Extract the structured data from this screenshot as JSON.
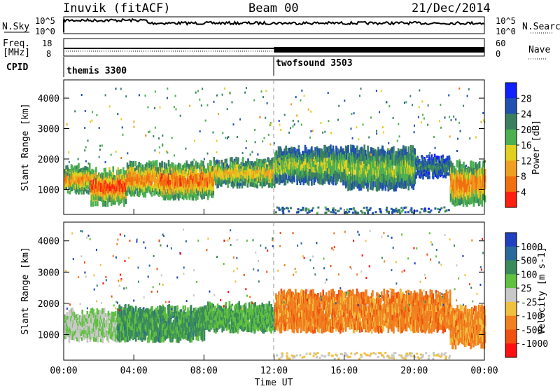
{
  "header": {
    "station": "Inuvik (fitACF)",
    "beam": "Beam 00",
    "date": "21/Dec/2014"
  },
  "top_panels": {
    "nsky_label": "N.Sky",
    "nsky_ticks": [
      "10^5",
      "10^0"
    ],
    "nsearch_label": "N.Search",
    "nsearch_ticks": [
      "10^5",
      "10^0"
    ],
    "freq_label": "Freq.",
    "freq_unit": "[MHz]",
    "freq_ticks": [
      "18",
      "8"
    ],
    "nave_label": "Nave",
    "nave_ticks": [
      "60",
      "0"
    ],
    "cpid_label": "CPID",
    "cpid_segments": [
      {
        "name": "themis 3300",
        "start_hour": 0
      },
      {
        "name": "twofsound 3503",
        "start_hour": 12
      }
    ]
  },
  "chart_data": [
    {
      "type": "heatmap",
      "panel": "power",
      "xlabel": "",
      "ylabel": "Slant Range [km]",
      "x_range_hours": [
        0,
        24
      ],
      "ylim": [
        180,
        4600
      ],
      "y_ticks": [
        "1000",
        "2000",
        "3000",
        "4000"
      ],
      "colorbar_label": "Power [dB]",
      "colorbar_ticks": [
        "4",
        "8",
        "12",
        "16",
        "20",
        "24",
        "28"
      ],
      "colorbar_colors": [
        "#1020ff",
        "#2050b0",
        "#3a8060",
        "#4cb050",
        "#e0d020",
        "#f0a020",
        "#f07010",
        "#ff2010"
      ],
      "bands": [
        {
          "t0": 0.0,
          "t1": 1.5,
          "r0": 900,
          "r1": 1700,
          "level": 0.8
        },
        {
          "t0": 1.5,
          "t1": 3.5,
          "r0": 500,
          "r1": 1600,
          "level": 0.95
        },
        {
          "t0": 3.5,
          "t1": 5.5,
          "r0": 800,
          "r1": 1800,
          "level": 0.85
        },
        {
          "t0": 5.5,
          "t1": 8.5,
          "r0": 700,
          "r1": 1800,
          "level": 0.9
        },
        {
          "t0": 8.5,
          "t1": 12.0,
          "r0": 1100,
          "r1": 1900,
          "level": 0.7
        },
        {
          "t0": 12.0,
          "t1": 16.0,
          "r0": 1200,
          "r1": 2300,
          "level": 0.55
        },
        {
          "t0": 16.0,
          "t1": 20.0,
          "r0": 1000,
          "r1": 2300,
          "level": 0.55
        },
        {
          "t0": 20.0,
          "t1": 22.0,
          "r0": 1400,
          "r1": 2000,
          "level": 0.35
        },
        {
          "t0": 22.0,
          "t1": 24.0,
          "r0": 500,
          "r1": 1800,
          "level": 0.85
        }
      ]
    },
    {
      "type": "heatmap",
      "panel": "velocity",
      "xlabel": "Time UT",
      "ylabel": "Slant Range [km]",
      "x_range_hours": [
        0,
        24
      ],
      "x_ticks": [
        "00:00",
        "04:00",
        "08:00",
        "12:00",
        "16:00",
        "20:00",
        "00:00"
      ],
      "ylim": [
        180,
        4600
      ],
      "y_ticks": [
        "1000",
        "2000",
        "3000",
        "4000"
      ],
      "colorbar_label": "Velocity [m s-1]",
      "colorbar_ticks": [
        "1000",
        "500",
        "100",
        "25",
        "-25",
        "-100",
        "-500",
        "-1000"
      ],
      "colorbar_colors": [
        "#2040c0",
        "#2a6a9a",
        "#3a8a5a",
        "#60c040",
        "#c8c8c8",
        "#f0c040",
        "#f08020",
        "#f05010",
        "#ff1010"
      ],
      "bands": [
        {
          "t0": 0.0,
          "t1": 3.0,
          "r0": 800,
          "r1": 1700,
          "vel": 0.45
        },
        {
          "t0": 3.0,
          "t1": 8.0,
          "r0": 800,
          "r1": 1800,
          "vel": 0.3
        },
        {
          "t0": 8.0,
          "t1": 12.0,
          "r0": 1100,
          "r1": 1900,
          "vel": 0.35
        },
        {
          "t0": 12.0,
          "t1": 22.0,
          "r0": 1100,
          "r1": 2300,
          "vel": 0.72
        },
        {
          "t0": 22.0,
          "t1": 24.0,
          "r0": 600,
          "r1": 1800,
          "vel": 0.7
        }
      ]
    }
  ]
}
